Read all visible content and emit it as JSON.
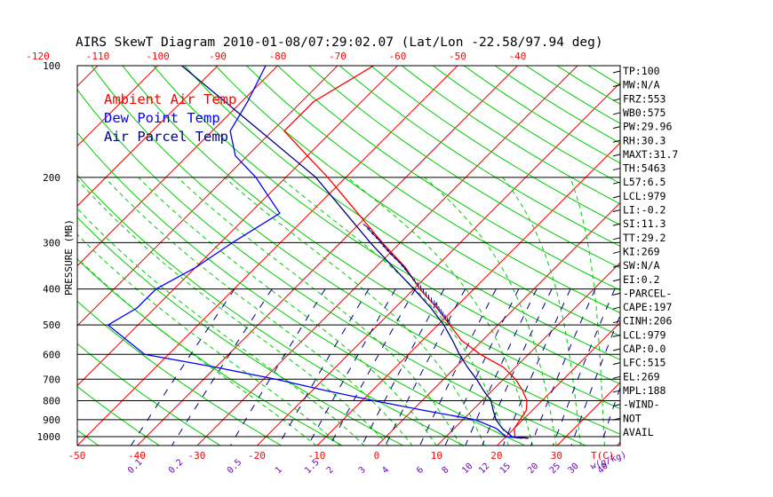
{
  "chart_data": {
    "type": "line",
    "title": "AIRS SkewT Diagram 2010-01-08/07:29:02.07 (Lat/Lon -22.58/97.94 deg)",
    "ylabel": "PRESSURE (MB)",
    "x_unit": "T(C)",
    "mixing_unit": "w(g/kg)",
    "pressure_ticks": [
      100,
      200,
      300,
      400,
      500,
      600,
      700,
      800,
      900,
      1000
    ],
    "top_temp_ticks": [
      "-120",
      "-110",
      "-100",
      "-90",
      "-80",
      "-70",
      "-60",
      "-50",
      "-40"
    ],
    "bottom_temp_ticks": [
      "-50",
      "-40",
      "-30",
      "-20",
      "-10",
      "0",
      "10",
      "20",
      "30"
    ],
    "mixing_ratio_labels": [
      "0.1",
      "0.2",
      "0.5",
      "1",
      "1.5",
      "2",
      "3",
      "4",
      "6",
      "8",
      "10",
      "12",
      "15",
      "20",
      "25",
      "30",
      "40"
    ],
    "legend": [
      {
        "name": "Ambient Air Temp",
        "color": "#ff0000"
      },
      {
        "name": "Dew Point Temp",
        "color": "#0000ff"
      },
      {
        "name": "Air Parcel Temp",
        "color": "#000080"
      }
    ],
    "series": [
      {
        "name": "Ambient Air Temp",
        "color": "#ff0000",
        "points": [
          [
            1010,
            24
          ],
          [
            1000,
            21.5
          ],
          [
            950,
            20
          ],
          [
            900,
            19.5
          ],
          [
            850,
            19
          ],
          [
            800,
            17.5
          ],
          [
            750,
            15
          ],
          [
            700,
            12
          ],
          [
            650,
            8
          ],
          [
            600,
            2
          ],
          [
            550,
            -3.5
          ],
          [
            500,
            -8
          ],
          [
            450,
            -13
          ],
          [
            400,
            -19
          ],
          [
            350,
            -25
          ],
          [
            300,
            -33
          ],
          [
            250,
            -42
          ],
          [
            200,
            -53
          ],
          [
            175,
            -60
          ],
          [
            150,
            -68
          ],
          [
            125,
            -68
          ],
          [
            100,
            -64
          ]
        ]
      },
      {
        "name": "Dew Point Temp",
        "color": "#0000ff",
        "points": [
          [
            1010,
            23
          ],
          [
            1000,
            20
          ],
          [
            950,
            17
          ],
          [
            900,
            12
          ],
          [
            850,
            2
          ],
          [
            800,
            -8
          ],
          [
            750,
            -18
          ],
          [
            700,
            -28
          ],
          [
            650,
            -40
          ],
          [
            600,
            -54
          ],
          [
            500,
            -65
          ],
          [
            450,
            -63
          ],
          [
            400,
            -63
          ],
          [
            350,
            -60
          ],
          [
            300,
            -58
          ],
          [
            250,
            -55
          ],
          [
            200,
            -65
          ],
          [
            175,
            -72
          ],
          [
            150,
            -77
          ],
          [
            125,
            -79
          ],
          [
            100,
            -82
          ]
        ]
      },
      {
        "name": "Air Parcel Temp",
        "color": "#000080",
        "points": [
          [
            1010,
            24
          ],
          [
            1000,
            21
          ],
          [
            950,
            18
          ],
          [
            900,
            15.5
          ],
          [
            850,
            13.5
          ],
          [
            800,
            11.5
          ],
          [
            750,
            8.5
          ],
          [
            700,
            5.5
          ],
          [
            650,
            2
          ],
          [
            600,
            -1.5
          ],
          [
            550,
            -5
          ],
          [
            500,
            -9
          ],
          [
            450,
            -14
          ],
          [
            400,
            -20
          ],
          [
            350,
            -27
          ],
          [
            300,
            -35
          ],
          [
            250,
            -44
          ],
          [
            200,
            -55
          ],
          [
            150,
            -72
          ],
          [
            100,
            -96
          ]
        ]
      }
    ],
    "indices": [
      "TP:100",
      "MW:N/A",
      "FRZ:553",
      "WB0:575",
      "PW:29.96",
      "RH:30.3",
      "MAXT:31.7",
      "TH:5463",
      "L57:6.5",
      "LCL:979",
      "LI:-0.2",
      "SI:11.3",
      "TT:29.2",
      "KI:269",
      "SW:N/A",
      "EI:0.2",
      "-PARCEL-",
      "CAPE:197",
      "CINH:206",
      "LCL:979",
      "CAP:0.0",
      "LFC:515",
      "EL:269",
      "MPL:188",
      "-WIND-",
      "NOT",
      "AVAIL"
    ],
    "colors": {
      "isotherm": "#ff0000",
      "dry_adiabat": "#00cc00",
      "moist_adiabat": "#00cc00",
      "mixing_ratio": "#000080",
      "isobar": "#000000",
      "tick_labels_top": "#ff0000",
      "tick_labels_bottom": "#ff0000",
      "mixing_labels": "#6a0dad"
    },
    "grid": true,
    "log_pressure_axis": true
  }
}
